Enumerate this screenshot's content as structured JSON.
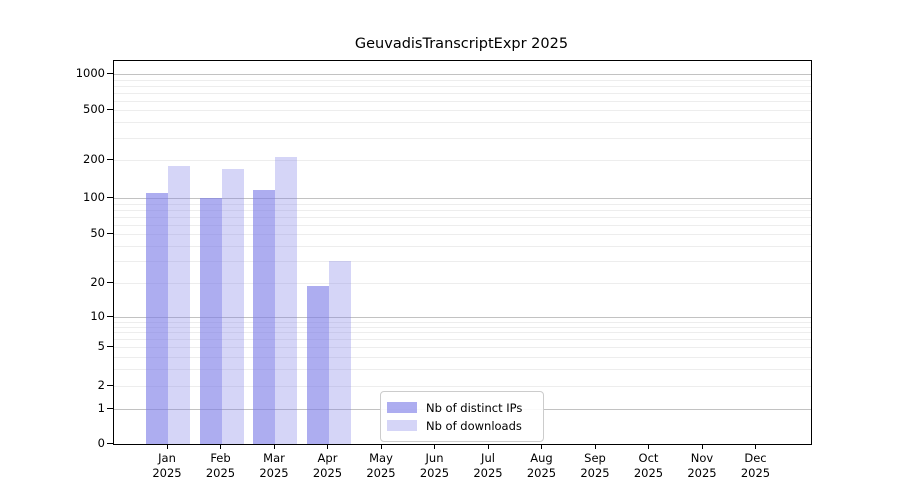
{
  "chart_data": {
    "type": "bar",
    "title": "GeuvadisTranscriptExpr 2025",
    "categories": [
      "Jan 2025",
      "Feb 2025",
      "Mar 2025",
      "Apr 2025",
      "May 2025",
      "Jun 2025",
      "Jul 2025",
      "Aug 2025",
      "Sep 2025",
      "Oct 2025",
      "Nov 2025",
      "Dec 2025"
    ],
    "series": [
      {
        "name": "Nb of distinct IPs",
        "color": "rgba(123,123,230,0.62)",
        "values": [
          110,
          100,
          115,
          19,
          null,
          null,
          null,
          null,
          null,
          null,
          null,
          null
        ]
      },
      {
        "name": "Nb of downloads",
        "color": "rgba(123,123,230,0.32)",
        "values": [
          180,
          170,
          210,
          30,
          null,
          null,
          null,
          null,
          null,
          null,
          null,
          null
        ]
      }
    ],
    "yscale": "symlog",
    "yticks": [
      0,
      1,
      2,
      5,
      10,
      20,
      50,
      100,
      200,
      500,
      1000
    ],
    "ylim": [
      0,
      1300
    ],
    "xlabel": "",
    "ylabel": "",
    "grid": "horizontal major and log-minor gridlines",
    "legend_position": "inside-bottom-center"
  }
}
